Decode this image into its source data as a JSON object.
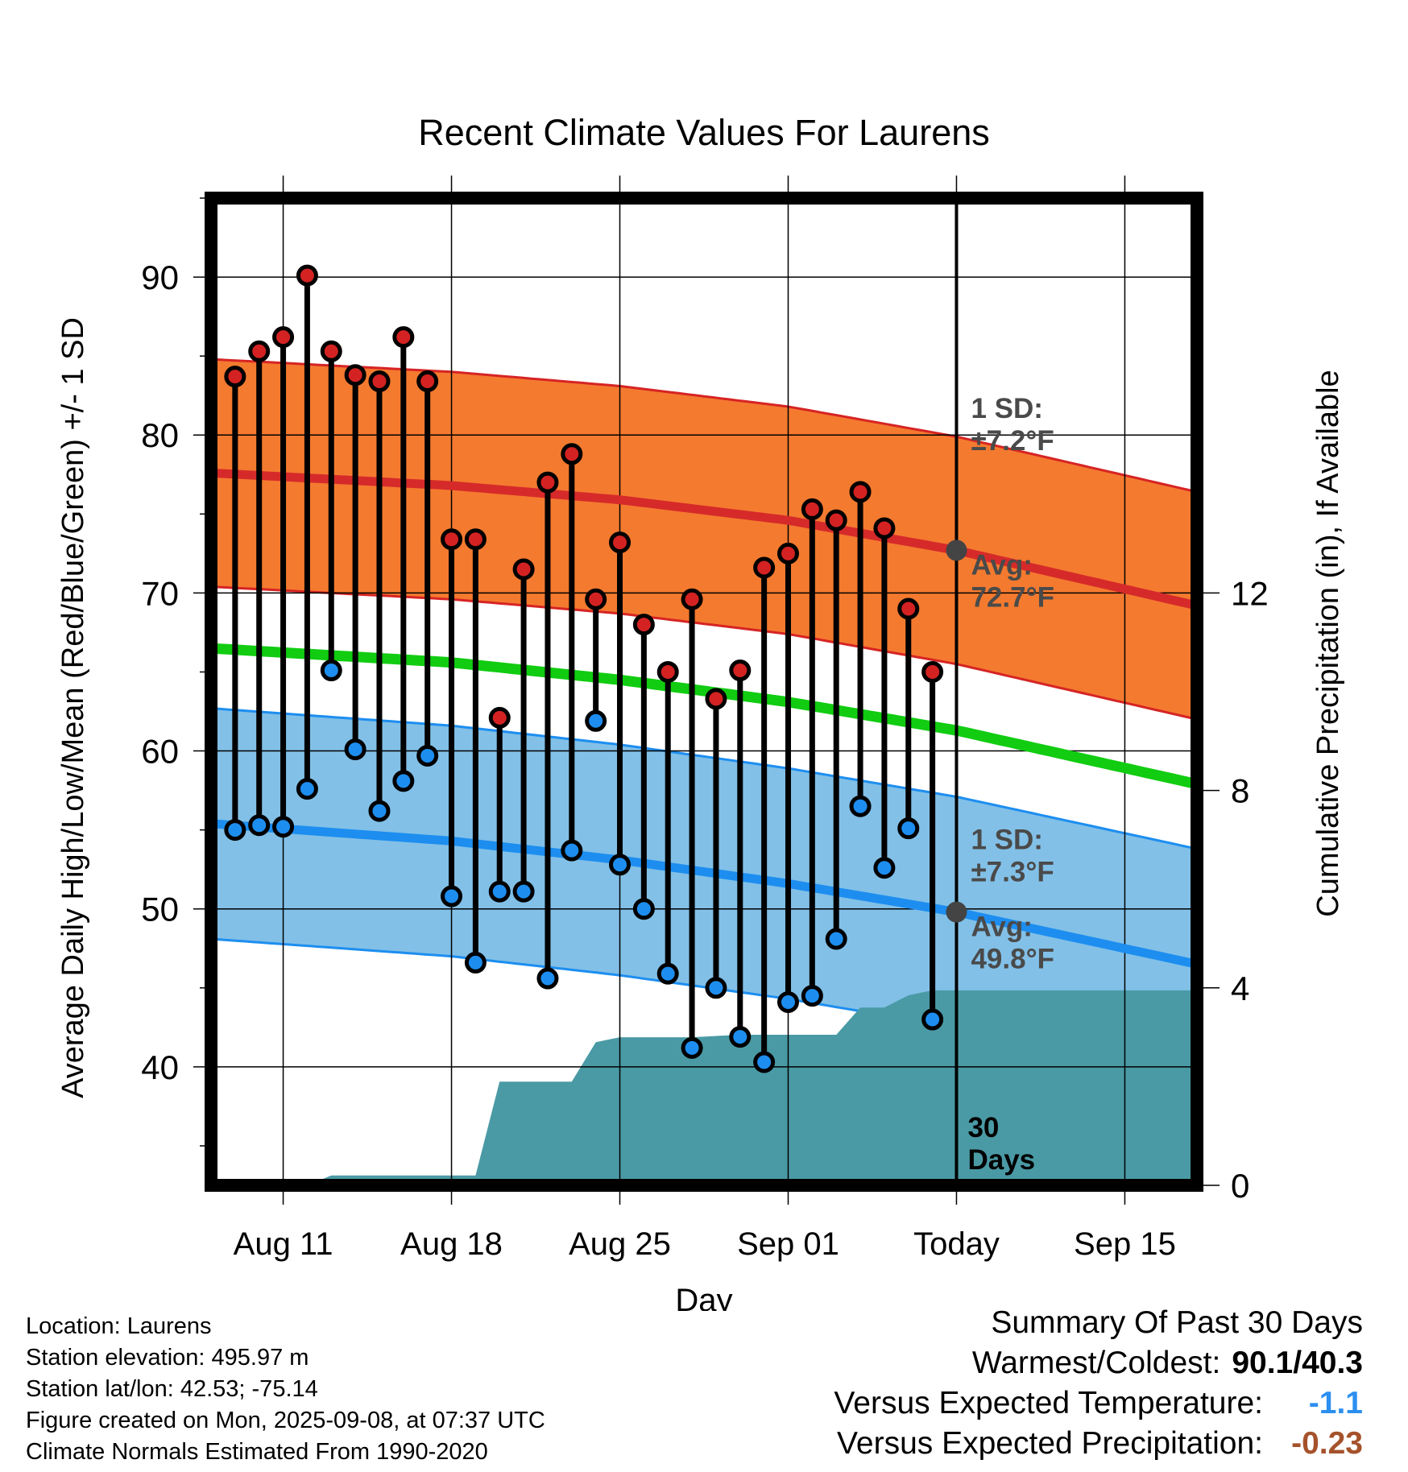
{
  "title": "Recent Climate Values For Laurens",
  "colors": {
    "high_band": "#f47a2f",
    "high_band_edge": "#d62424",
    "high_mean": "#d62a2a",
    "low_band": "#82c0e7",
    "low_band_edge": "#1d8ef0",
    "low_mean": "#1d8ef0",
    "mean_line": "#11cc11",
    "precip_fill": "#4a9aa5",
    "high_dot": "#d42222",
    "low_dot": "#1d8ef0",
    "avg_marker": "#444444",
    "annotation": "#4a4a4a"
  },
  "chart_data": {
    "type": "line",
    "xlabel": "Day",
    "ylabel": "Average Daily High/Low/Mean (Red/Blue/Green) +/- 1 SD",
    "y2label": "Cumulative Precipitation (in), If Available",
    "x_range": [
      "2025-08-08",
      "2025-09-18"
    ],
    "ylim": [
      32.5,
      95
    ],
    "y_ticks": [
      40,
      50,
      60,
      70,
      80,
      90
    ],
    "y2lim": [
      0,
      20
    ],
    "y2_ticks": [
      0,
      4,
      8,
      12
    ],
    "grid": true,
    "x_ticks": [
      {
        "date": "2025-08-11",
        "label": "Aug 11"
      },
      {
        "date": "2025-08-18",
        "label": "Aug 18"
      },
      {
        "date": "2025-08-25",
        "label": "Aug 25"
      },
      {
        "date": "2025-09-01",
        "label": "Sep 01"
      },
      {
        "date": "2025-09-08",
        "label": "Today"
      },
      {
        "date": "2025-09-15",
        "label": "Sep 15"
      }
    ],
    "today": "2025-09-08",
    "observations": [
      {
        "date": "2025-08-09",
        "high": 83.7,
        "low": 55.0
      },
      {
        "date": "2025-08-10",
        "high": 85.3,
        "low": 55.3
      },
      {
        "date": "2025-08-11",
        "high": 86.2,
        "low": 55.2
      },
      {
        "date": "2025-08-12",
        "high": 90.1,
        "low": 57.6
      },
      {
        "date": "2025-08-13",
        "high": 85.3,
        "low": 65.1
      },
      {
        "date": "2025-08-14",
        "high": 83.8,
        "low": 60.1
      },
      {
        "date": "2025-08-15",
        "high": 83.4,
        "low": 56.2
      },
      {
        "date": "2025-08-16",
        "high": 86.2,
        "low": 58.1
      },
      {
        "date": "2025-08-17",
        "high": 83.4,
        "low": 59.7
      },
      {
        "date": "2025-08-18",
        "high": 73.4,
        "low": 50.8
      },
      {
        "date": "2025-08-19",
        "high": 73.4,
        "low": 46.6
      },
      {
        "date": "2025-08-20",
        "high": 62.1,
        "low": 51.1
      },
      {
        "date": "2025-08-21",
        "high": 71.5,
        "low": 51.1
      },
      {
        "date": "2025-08-22",
        "high": 77.0,
        "low": 45.6
      },
      {
        "date": "2025-08-23",
        "high": 78.8,
        "low": 53.7
      },
      {
        "date": "2025-08-24",
        "high": 69.6,
        "low": 61.9
      },
      {
        "date": "2025-08-25",
        "high": 73.2,
        "low": 52.8
      },
      {
        "date": "2025-08-26",
        "high": 68.0,
        "low": 50.0
      },
      {
        "date": "2025-08-27",
        "high": 65.0,
        "low": 45.9
      },
      {
        "date": "2025-08-28",
        "high": 69.6,
        "low": 41.2
      },
      {
        "date": "2025-08-29",
        "high": 63.3,
        "low": 45.0
      },
      {
        "date": "2025-08-30",
        "high": 65.1,
        "low": 41.9
      },
      {
        "date": "2025-08-31",
        "high": 71.6,
        "low": 40.3
      },
      {
        "date": "2025-09-01",
        "high": 72.5,
        "low": 44.1
      },
      {
        "date": "2025-09-02",
        "high": 75.3,
        "low": 44.5
      },
      {
        "date": "2025-09-03",
        "high": 74.6,
        "low": 48.1
      },
      {
        "date": "2025-09-04",
        "high": 76.4,
        "low": 56.5
      },
      {
        "date": "2025-09-05",
        "high": 74.1,
        "low": 52.6
      },
      {
        "date": "2025-09-06",
        "high": 69.0,
        "low": 55.1
      },
      {
        "date": "2025-09-07",
        "high": 65.0,
        "low": 43.0
      }
    ],
    "normal_high_mean": [
      {
        "date": "2025-08-08",
        "value": 77.6
      },
      {
        "date": "2025-08-18",
        "value": 76.8
      },
      {
        "date": "2025-08-25",
        "value": 75.9
      },
      {
        "date": "2025-09-01",
        "value": 74.6
      },
      {
        "date": "2025-09-08",
        "value": 72.7
      },
      {
        "date": "2025-09-18",
        "value": 69.2
      }
    ],
    "normal_high_sd": 7.2,
    "normal_low_mean": [
      {
        "date": "2025-08-08",
        "value": 55.4
      },
      {
        "date": "2025-08-18",
        "value": 54.3
      },
      {
        "date": "2025-08-25",
        "value": 53.1
      },
      {
        "date": "2025-09-01",
        "value": 51.6
      },
      {
        "date": "2025-09-08",
        "value": 49.8
      },
      {
        "date": "2025-09-18",
        "value": 46.5
      }
    ],
    "normal_low_sd": 7.3,
    "normal_mean": [
      {
        "date": "2025-08-08",
        "value": 66.5
      },
      {
        "date": "2025-08-18",
        "value": 65.6
      },
      {
        "date": "2025-08-25",
        "value": 64.5
      },
      {
        "date": "2025-09-01",
        "value": 63.1
      },
      {
        "date": "2025-09-08",
        "value": 61.3
      },
      {
        "date": "2025-09-18",
        "value": 57.9
      }
    ],
    "precip_cumulative": [
      {
        "date": "2025-08-08",
        "value": 0.0
      },
      {
        "date": "2025-08-12",
        "value": 0.0
      },
      {
        "date": "2025-08-13",
        "value": 0.2
      },
      {
        "date": "2025-08-19",
        "value": 0.2
      },
      {
        "date": "2025-08-20",
        "value": 2.1
      },
      {
        "date": "2025-08-22",
        "value": 2.1
      },
      {
        "date": "2025-08-23",
        "value": 2.1
      },
      {
        "date": "2025-08-24",
        "value": 2.9
      },
      {
        "date": "2025-08-25",
        "value": 3.0
      },
      {
        "date": "2025-08-28",
        "value": 3.0
      },
      {
        "date": "2025-08-30",
        "value": 3.05
      },
      {
        "date": "2025-09-03",
        "value": 3.05
      },
      {
        "date": "2025-09-04",
        "value": 3.6
      },
      {
        "date": "2025-09-05",
        "value": 3.6
      },
      {
        "date": "2025-09-06",
        "value": 3.85
      },
      {
        "date": "2025-09-07",
        "value": 3.95
      },
      {
        "date": "2025-09-18",
        "value": 3.95
      }
    ],
    "annotations": {
      "high_sd_label": "1 SD:",
      "high_sd_value": "±7.2°F",
      "high_avg_label": "Avg:",
      "high_avg_value": "72.7°F",
      "low_sd_label": "1 SD:",
      "low_sd_value": "±7.3°F",
      "low_avg_label": "Avg:",
      "low_avg_value": "49.8°F",
      "window_count": "30",
      "window_unit": "Days"
    }
  },
  "info": {
    "location": "Location: Laurens",
    "elevation": "Station elevation: 495.97 m",
    "latlon": "Station lat/lon: 42.53; -75.14",
    "created": "Figure created on Mon, 2025-09-08, at 07:37 UTC",
    "normals": "Climate Normals Estimated From 1990-2020"
  },
  "summary": {
    "heading": "Summary Of Past 30 Days",
    "warm_cold_label": "Warmest/Coldest:",
    "warm_cold_value": "90.1/40.3",
    "temp_label": "Versus Expected Temperature:",
    "temp_value": "-1.1",
    "precip_label": "Versus Expected Precipitation:",
    "precip_value": "-0.23"
  }
}
